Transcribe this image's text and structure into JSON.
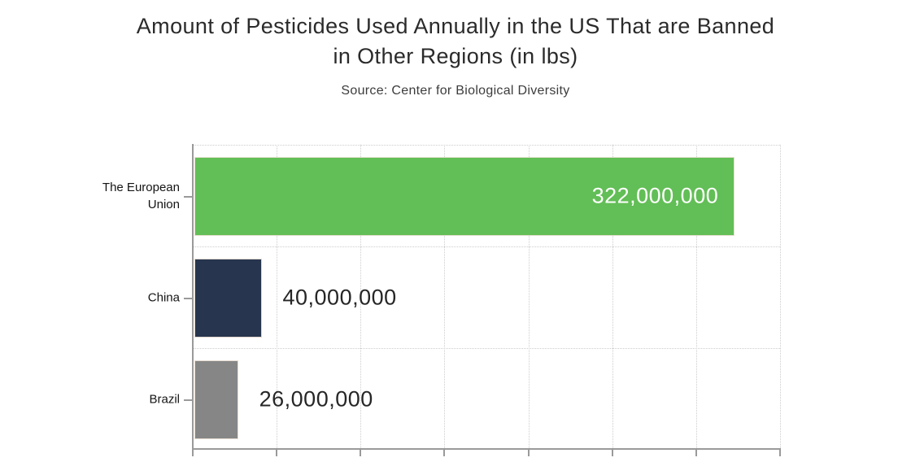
{
  "chart_data": {
    "type": "bar",
    "orientation": "horizontal",
    "title": "Amount of Pesticides Used Annually in the US That are Banned in Other Regions (in lbs)",
    "title_lines": [
      "Amount of Pesticides Used Annually in the US That are Banned",
      "in Other Regions (in lbs)"
    ],
    "subtitle": "Source: Center for Biological Diversity",
    "categories": [
      "The European Union",
      "China",
      "Brazil"
    ],
    "values": [
      322000000,
      40000000,
      26000000
    ],
    "value_labels": [
      "322,000,000",
      "40,000,000",
      "26,000,000"
    ],
    "bar_colors": [
      "#62be56",
      "#27364e",
      "#868686"
    ],
    "value_label_placement": [
      "inside-end",
      "outside-end",
      "outside-end"
    ],
    "value_label_colors": [
      "#ffffff",
      "#262626",
      "#262626"
    ],
    "axis": {
      "min": 0,
      "max": 350000000,
      "gridline_interval": 50000000,
      "tick_labels_shown": false
    },
    "grid_style": "dotted",
    "legend": "none",
    "colors": {
      "grid": "#cdcdcd",
      "axis": "#9a9a9a",
      "title_text": "#2b2b2b",
      "subtitle_text": "#3c3c3c",
      "category_text": "#141414"
    }
  }
}
